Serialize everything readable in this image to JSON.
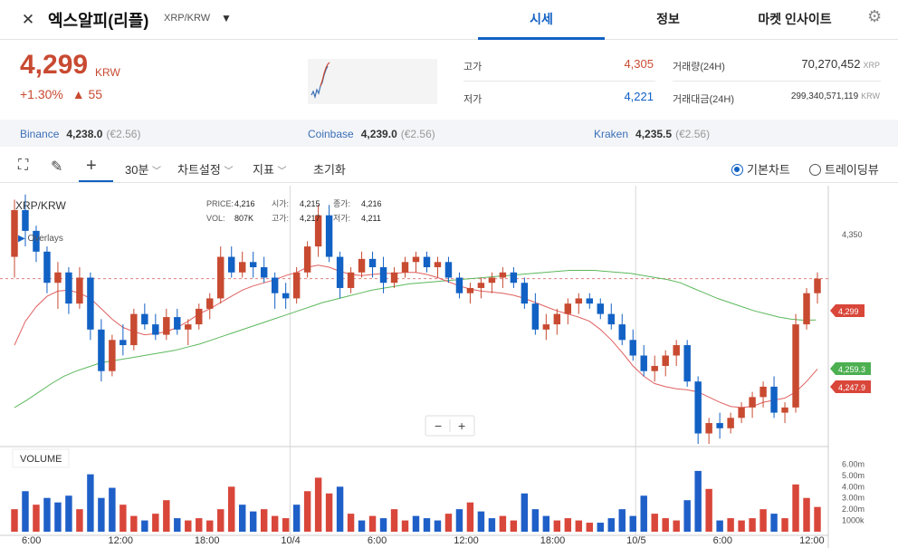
{
  "header": {
    "close_icon": "close-icon",
    "coin_name": "엑스알피(리플)",
    "pair": "XRP/KRW",
    "tabs": [
      {
        "label": "시세",
        "active": true
      },
      {
        "label": "정보",
        "active": false
      },
      {
        "label": "마켓 인사이트",
        "active": false
      }
    ]
  },
  "price": {
    "current": "4,299",
    "unit": "KRW",
    "change_pct": "+1.30%",
    "change_abs": "▲ 55",
    "color_up": "#c84a31",
    "color_down": "#1261c4"
  },
  "stats": {
    "high_label": "고가",
    "high": "4,305",
    "low_label": "저가",
    "low": "4,221",
    "volume_label": "거래량(24H)",
    "volume": "70,270,452",
    "volume_unit": "XRP",
    "amount_label": "거래대금(24H)",
    "amount": "299,340,571,119",
    "amount_unit": "KRW"
  },
  "exchanges": [
    {
      "name": "Binance",
      "price": "4,238.0",
      "eur": "(€2.56)"
    },
    {
      "name": "Coinbase",
      "price": "4,239.0",
      "eur": "(€2.56)"
    },
    {
      "name": "Kraken",
      "price": "4,235.5",
      "eur": "(€2.56)"
    }
  ],
  "toolbar": {
    "interval": "30분",
    "chart_settings": "차트설정",
    "indicators": "지표",
    "reset": "초기화",
    "basic_chart": "기본차트",
    "tradingview": "트레이딩뷰"
  },
  "chart": {
    "symbol": "XRP/KRW",
    "overlays": "Overlays",
    "ohlc": {
      "price_label": "PRICE:",
      "price": "4,216",
      "open_label": "시가:",
      "open": "4,215",
      "close_label": "종가:",
      "close": "4,216",
      "vol_label": "VOL:",
      "vol": "807K",
      "high_label": "고가:",
      "high": "4,217",
      "low_label": "저가:",
      "low": "4,211"
    },
    "volume_label": "VOLUME",
    "zoom_out": "−",
    "zoom_in": "+",
    "price_tag_current": "4,299",
    "price_tag_green": "4,259.3",
    "price_tag_red": "4,247.9",
    "axis_price_label": "4,350"
  },
  "chart_data": {
    "type": "candlestick",
    "y_ticks": [
      "4,350"
    ],
    "volume_ticks": [
      "6.00m",
      "5.00m",
      "4.00m",
      "3.00m",
      "2.00m",
      "1000k"
    ],
    "x_ticks": [
      "6:00",
      "12:00",
      "18:00",
      "10/4",
      "6:00",
      "12:00",
      "18:00",
      "10/5",
      "6:00",
      "12:00"
    ],
    "ylim": [
      4140,
      4385
    ],
    "candles": [
      [
        4320,
        4375,
        4300,
        4365
      ],
      [
        4365,
        4380,
        4330,
        4345
      ],
      [
        4345,
        4350,
        4315,
        4325
      ],
      [
        4325,
        4330,
        4285,
        4295
      ],
      [
        4295,
        4315,
        4270,
        4305
      ],
      [
        4305,
        4310,
        4265,
        4275
      ],
      [
        4275,
        4310,
        4270,
        4300
      ],
      [
        4300,
        4305,
        4240,
        4250
      ],
      [
        4250,
        4260,
        4200,
        4210
      ],
      [
        4210,
        4245,
        4205,
        4240
      ],
      [
        4240,
        4255,
        4225,
        4235
      ],
      [
        4235,
        4270,
        4230,
        4265
      ],
      [
        4265,
        4275,
        4250,
        4255
      ],
      [
        4255,
        4265,
        4240,
        4245
      ],
      [
        4245,
        4270,
        4240,
        4262
      ],
      [
        4262,
        4270,
        4245,
        4250
      ],
      [
        4250,
        4260,
        4235,
        4255
      ],
      [
        4255,
        4275,
        4250,
        4270
      ],
      [
        4270,
        4285,
        4260,
        4280
      ],
      [
        4280,
        4330,
        4275,
        4320
      ],
      [
        4320,
        4330,
        4300,
        4305
      ],
      [
        4305,
        4325,
        4300,
        4315
      ],
      [
        4315,
        4325,
        4300,
        4310
      ],
      [
        4310,
        4320,
        4295,
        4300
      ],
      [
        4300,
        4305,
        4270,
        4285
      ],
      [
        4285,
        4295,
        4270,
        4280
      ],
      [
        4280,
        4310,
        4275,
        4305
      ],
      [
        4305,
        4335,
        4300,
        4330
      ],
      [
        4330,
        4370,
        4320,
        4360
      ],
      [
        4360,
        4370,
        4315,
        4320
      ],
      [
        4320,
        4325,
        4280,
        4290
      ],
      [
        4290,
        4310,
        4285,
        4305
      ],
      [
        4305,
        4325,
        4300,
        4318
      ],
      [
        4318,
        4325,
        4300,
        4310
      ],
      [
        4310,
        4320,
        4285,
        4295
      ],
      [
        4295,
        4310,
        4290,
        4305
      ],
      [
        4305,
        4320,
        4300,
        4315
      ],
      [
        4315,
        4325,
        4305,
        4320
      ],
      [
        4320,
        4325,
        4305,
        4310
      ],
      [
        4310,
        4320,
        4300,
        4315
      ],
      [
        4315,
        4320,
        4295,
        4300
      ],
      [
        4300,
        4305,
        4280,
        4285
      ],
      [
        4285,
        4295,
        4275,
        4290
      ],
      [
        4290,
        4300,
        4280,
        4295
      ],
      [
        4295,
        4305,
        4285,
        4300
      ],
      [
        4300,
        4310,
        4290,
        4305
      ],
      [
        4305,
        4310,
        4290,
        4295
      ],
      [
        4295,
        4300,
        4270,
        4275
      ],
      [
        4275,
        4285,
        4245,
        4250
      ],
      [
        4250,
        4265,
        4240,
        4255
      ],
      [
        4255,
        4270,
        4245,
        4265
      ],
      [
        4265,
        4280,
        4255,
        4275
      ],
      [
        4275,
        4285,
        4265,
        4280
      ],
      [
        4280,
        4285,
        4270,
        4275
      ],
      [
        4275,
        4280,
        4260,
        4265
      ],
      [
        4265,
        4275,
        4250,
        4255
      ],
      [
        4255,
        4265,
        4235,
        4240
      ],
      [
        4240,
        4250,
        4220,
        4225
      ],
      [
        4225,
        4235,
        4205,
        4210
      ],
      [
        4210,
        4225,
        4200,
        4215
      ],
      [
        4215,
        4230,
        4205,
        4225
      ],
      [
        4225,
        4240,
        4215,
        4235
      ],
      [
        4235,
        4240,
        4195,
        4200
      ],
      [
        4200,
        4205,
        4140,
        4150
      ],
      [
        4150,
        4165,
        4140,
        4160
      ],
      [
        4160,
        4170,
        4145,
        4155
      ],
      [
        4155,
        4170,
        4150,
        4165
      ],
      [
        4165,
        4180,
        4160,
        4175
      ],
      [
        4175,
        4190,
        4165,
        4185
      ],
      [
        4185,
        4200,
        4175,
        4195
      ],
      [
        4195,
        4205,
        4165,
        4170
      ],
      [
        4170,
        4180,
        4160,
        4175
      ],
      [
        4175,
        4265,
        4170,
        4255
      ],
      [
        4255,
        4290,
        4250,
        4285
      ],
      [
        4285,
        4305,
        4275,
        4299
      ]
    ],
    "ma_red": [
      4235,
      4258,
      4272,
      4282,
      4287,
      4288,
      4285,
      4280,
      4270,
      4260,
      4252,
      4248,
      4245,
      4246,
      4248,
      4252,
      4258,
      4265,
      4270,
      4276,
      4282,
      4288,
      4292,
      4295,
      4298,
      4302,
      4305,
      4310,
      4312,
      4310,
      4306,
      4303,
      4302,
      4303,
      4304,
      4304,
      4305,
      4305,
      4303,
      4300,
      4296,
      4292,
      4289,
      4287,
      4286,
      4285,
      4283,
      4280,
      4276,
      4272,
      4268,
      4265,
      4262,
      4258,
      4250,
      4240,
      4228,
      4215,
      4205,
      4198,
      4195,
      4193,
      4192,
      4190,
      4185,
      4180,
      4176,
      4175,
      4176,
      4180,
      4182,
      4184,
      4190,
      4200,
      4212
    ],
    "ma_green": [
      4175,
      4182,
      4190,
      4198,
      4205,
      4210,
      4214,
      4218,
      4220,
      4222,
      4224,
      4226,
      4228,
      4230,
      4233,
      4236,
      4240,
      4244,
      4248,
      4252,
      4256,
      4260,
      4264,
      4268,
      4272,
      4276,
      4279,
      4282,
      4285,
      4288,
      4290,
      4292,
      4294,
      4295,
      4296,
      4297,
      4298,
      4299,
      4300,
      4301,
      4302,
      4303,
      4304,
      4305,
      4306,
      4307,
      4307,
      4307,
      4306,
      4305,
      4304,
      4302,
      4300,
      4298,
      4295,
      4290,
      4285,
      4280,
      4276,
      4272,
      4268,
      4265,
      4262,
      4260,
      4259,
      4259.3
    ],
    "volume": [
      [
        2.0,
        "up"
      ],
      [
        3.6,
        "down"
      ],
      [
        2.4,
        "up"
      ],
      [
        3.0,
        "down"
      ],
      [
        2.6,
        "down"
      ],
      [
        3.2,
        "down"
      ],
      [
        2.0,
        "up"
      ],
      [
        5.1,
        "down"
      ],
      [
        3.0,
        "down"
      ],
      [
        3.9,
        "down"
      ],
      [
        2.4,
        "up"
      ],
      [
        1.4,
        "up"
      ],
      [
        1.0,
        "down"
      ],
      [
        1.6,
        "up"
      ],
      [
        2.8,
        "up"
      ],
      [
        1.2,
        "down"
      ],
      [
        1.0,
        "up"
      ],
      [
        1.2,
        "up"
      ],
      [
        1.0,
        "up"
      ],
      [
        2.0,
        "up"
      ],
      [
        4.0,
        "up"
      ],
      [
        2.4,
        "down"
      ],
      [
        1.8,
        "down"
      ],
      [
        2.0,
        "up"
      ],
      [
        1.4,
        "up"
      ],
      [
        1.2,
        "up"
      ],
      [
        2.4,
        "down"
      ],
      [
        3.6,
        "up"
      ],
      [
        4.8,
        "up"
      ],
      [
        3.4,
        "up"
      ],
      [
        4.0,
        "down"
      ],
      [
        1.6,
        "up"
      ],
      [
        1.0,
        "down"
      ],
      [
        1.4,
        "up"
      ],
      [
        1.2,
        "down"
      ],
      [
        2.0,
        "up"
      ],
      [
        1.0,
        "up"
      ],
      [
        1.4,
        "down"
      ],
      [
        1.2,
        "down"
      ],
      [
        1.0,
        "down"
      ],
      [
        1.6,
        "up"
      ],
      [
        2.0,
        "down"
      ],
      [
        2.6,
        "up"
      ],
      [
        1.8,
        "down"
      ],
      [
        1.2,
        "down"
      ],
      [
        1.4,
        "up"
      ],
      [
        1.0,
        "up"
      ],
      [
        3.4,
        "down"
      ],
      [
        2.0,
        "down"
      ],
      [
        1.4,
        "down"
      ],
      [
        1.0,
        "up"
      ],
      [
        1.2,
        "up"
      ],
      [
        1.0,
        "up"
      ],
      [
        0.8,
        "up"
      ],
      [
        0.8,
        "down"
      ],
      [
        1.2,
        "down"
      ],
      [
        2.0,
        "down"
      ],
      [
        1.4,
        "down"
      ],
      [
        3.2,
        "down"
      ],
      [
        1.6,
        "up"
      ],
      [
        1.2,
        "up"
      ],
      [
        1.0,
        "up"
      ],
      [
        2.8,
        "down"
      ],
      [
        5.4,
        "down"
      ],
      [
        3.8,
        "up"
      ],
      [
        1.0,
        "down"
      ],
      [
        1.2,
        "up"
      ],
      [
        1.0,
        "up"
      ],
      [
        1.2,
        "up"
      ],
      [
        2.0,
        "up"
      ],
      [
        1.6,
        "down"
      ],
      [
        1.2,
        "up"
      ],
      [
        4.2,
        "up"
      ],
      [
        3.0,
        "up"
      ],
      [
        2.2,
        "up"
      ]
    ],
    "guide_line_value": 4299
  }
}
